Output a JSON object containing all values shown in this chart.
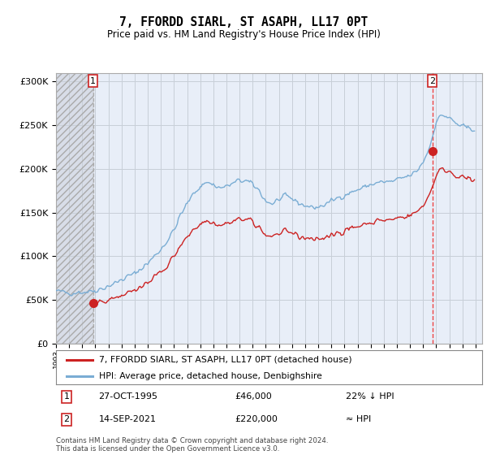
{
  "title": "7, FFORDD SIARL, ST ASAPH, LL17 0PT",
  "subtitle": "Price paid vs. HM Land Registry's House Price Index (HPI)",
  "legend_line1": "7, FFORDD SIARL, ST ASAPH, LL17 0PT (detached house)",
  "legend_line2": "HPI: Average price, detached house, Denbighshire",
  "annotation1_label": "1",
  "annotation1_date": "27-OCT-1995",
  "annotation1_price": "£46,000",
  "annotation1_hpi": "22% ↓ HPI",
  "annotation2_label": "2",
  "annotation2_date": "14-SEP-2021",
  "annotation2_price": "£220,000",
  "annotation2_hpi": "≈ HPI",
  "footer": "Contains HM Land Registry data © Crown copyright and database right 2024.\nThis data is licensed under the Open Government Licence v3.0.",
  "hpi_color": "#7aadd4",
  "price_color": "#cc2222",
  "dashed_color": "#ee4444",
  "marker_color": "#cc2222",
  "bg_color": "#e8eef8",
  "hatch_bg_color": "#d8dde8",
  "grid_color": "#c8cfd8",
  "ylim": [
    0,
    310000
  ],
  "xlim_start": 1993.0,
  "xlim_end": 2025.5,
  "sale1_x": 1995.833,
  "sale1_y": 46000,
  "sale2_x": 2021.7,
  "sale2_y": 220000
}
